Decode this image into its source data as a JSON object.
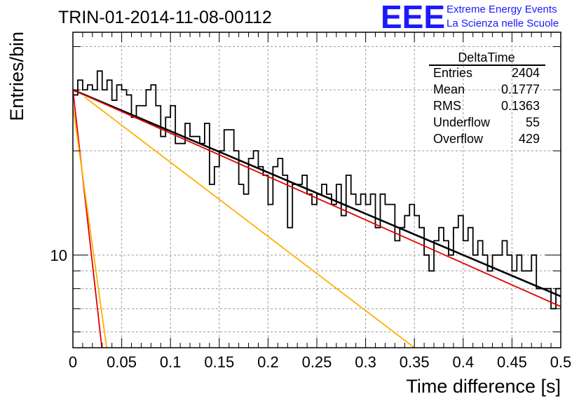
{
  "header": {
    "run_title": "TRIN-01-2014-11-08-00112",
    "logo_text": "EEE",
    "logo_line1": "Extreme Energy Events",
    "logo_line2": "La Scienza nelle Scuole",
    "logo_color": "#1a1aff"
  },
  "stats": {
    "title": "DeltaTime",
    "rows": [
      {
        "label": "Entries",
        "value": "2404"
      },
      {
        "label": "Mean",
        "value": "0.1777"
      },
      {
        "label": "RMS",
        "value": "0.1363"
      },
      {
        "label": "Underflow",
        "value": "55"
      },
      {
        "label": "Overflow",
        "value": "429"
      }
    ]
  },
  "chart_data": {
    "type": "line",
    "title": "TRIN-01-2014-11-08-00112",
    "xlabel": "Time difference [s]",
    "ylabel": "Entries/bin",
    "xlim": [
      0,
      0.5
    ],
    "ylim": [
      5.4,
      44
    ],
    "yscale": "log",
    "x_ticks": [
      "0",
      "0.05",
      "0.1",
      "0.15",
      "0.2",
      "0.25",
      "0.3",
      "0.35",
      "0.4",
      "0.45",
      "0.5"
    ],
    "y_ticks": [
      "10"
    ],
    "grid": true,
    "bin_width": 0.005,
    "histogram": [
      29,
      32,
      30,
      31,
      30,
      34,
      30,
      32,
      28,
      31,
      30,
      29,
      25,
      27,
      27,
      30,
      31,
      27,
      22,
      25,
      27,
      21,
      21,
      24,
      22,
      22,
      21,
      24,
      16,
      18,
      20,
      23,
      23,
      20,
      16,
      15,
      19,
      20,
      18,
      17,
      14,
      18,
      19,
      17,
      12,
      16,
      16,
      17,
      15,
      14,
      15,
      16,
      15,
      14,
      16,
      13,
      17,
      15,
      14,
      15,
      14,
      15,
      12,
      15,
      14,
      14,
      11,
      12,
      13,
      14,
      13,
      12,
      10,
      9,
      11,
      12,
      11,
      10,
      12,
      13,
      11,
      12,
      10,
      11,
      10,
      9,
      10,
      10,
      11,
      10,
      9,
      10,
      9,
      9,
      10,
      8,
      8,
      8,
      7,
      8
    ],
    "series": [
      {
        "color": "#000000",
        "points": [
          [
            0,
            30
          ],
          [
            0.5,
            7.6
          ]
        ]
      },
      {
        "color": "#e00000",
        "points": [
          [
            0,
            30
          ],
          [
            0.5,
            7.1
          ]
        ]
      },
      {
        "color": "#e00000",
        "points": [
          [
            0.0,
            30
          ],
          [
            0.03,
            5.3
          ]
        ]
      },
      {
        "color": "#ffb000",
        "points": [
          [
            0.0,
            27
          ],
          [
            0.035,
            5.3
          ]
        ]
      },
      {
        "color": "#ffb000",
        "points": [
          [
            0.012,
            28.6
          ],
          [
            0.35,
            5.4
          ]
        ]
      }
    ]
  }
}
